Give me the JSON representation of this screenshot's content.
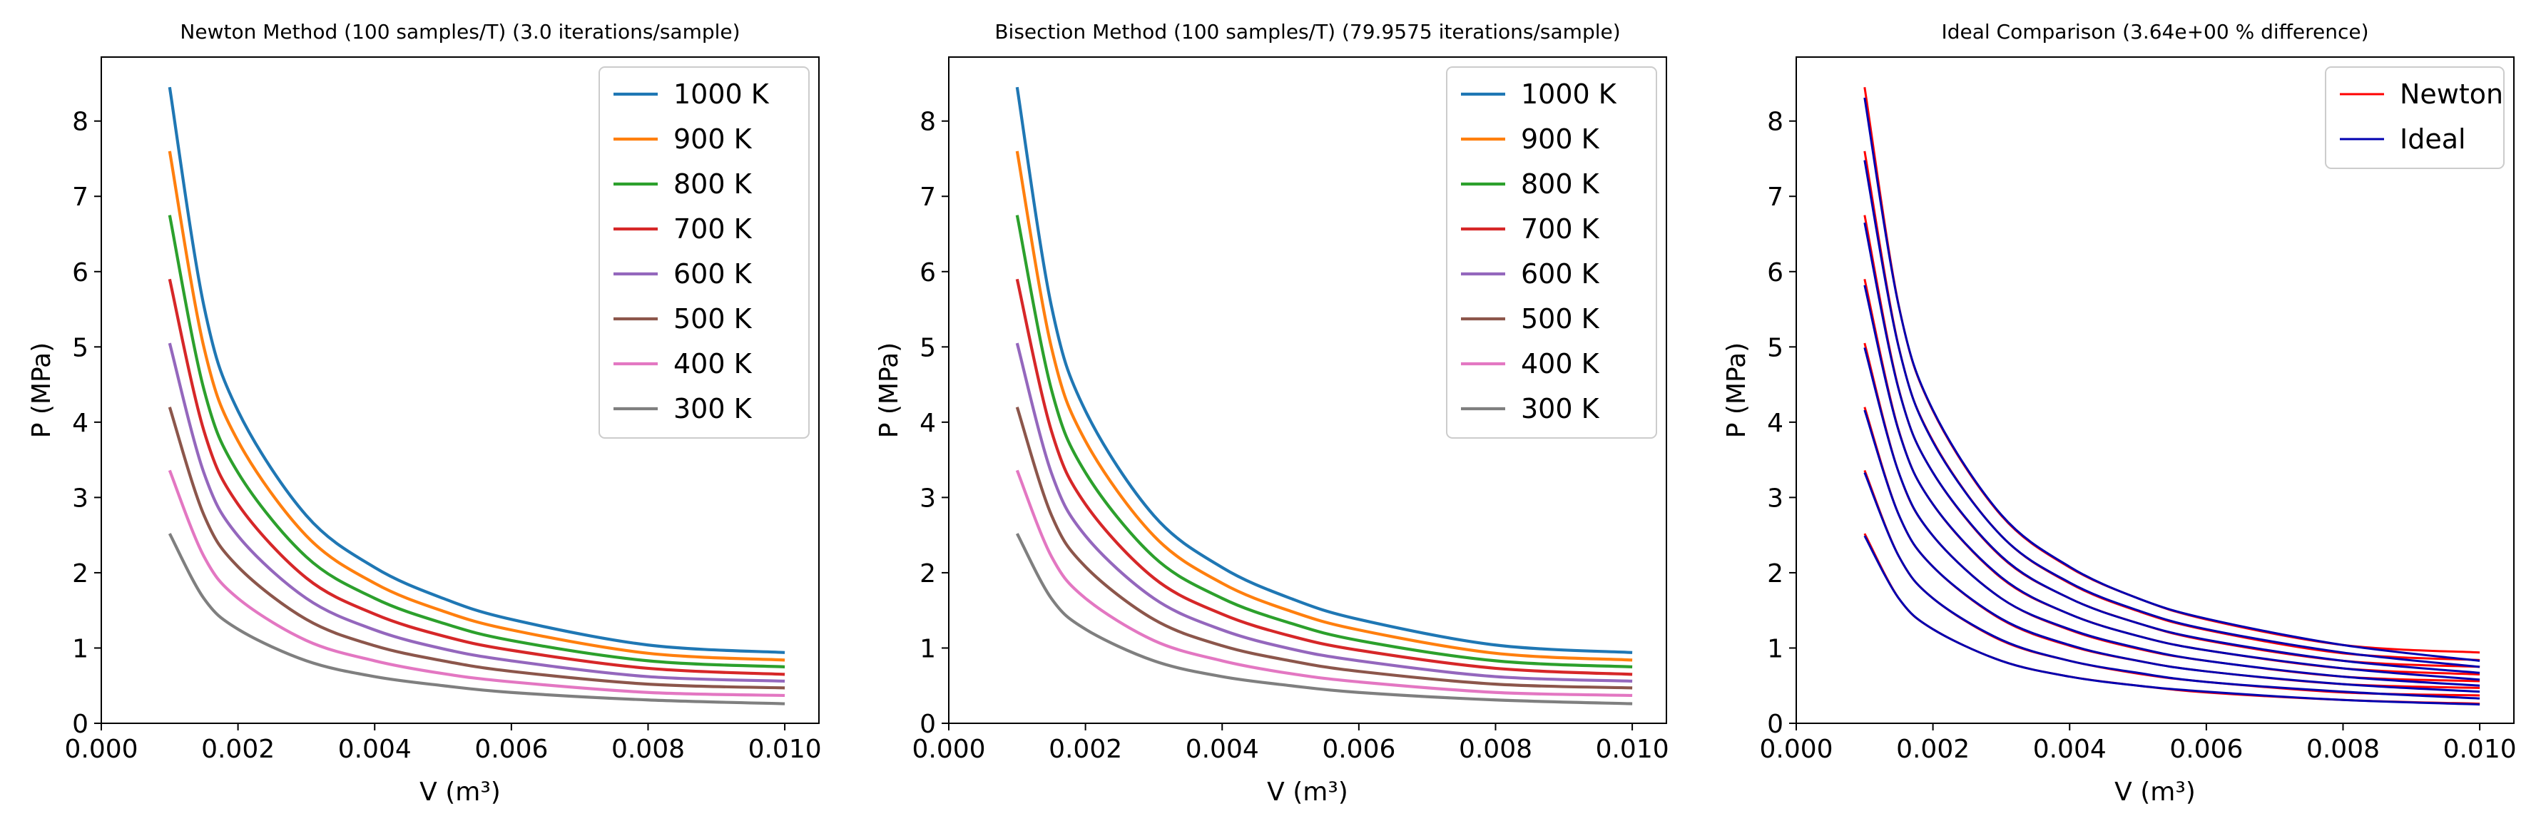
{
  "chart_data": [
    {
      "type": "line",
      "title": "Newton Method (100 samples/T) (3.0 iterations/sample)",
      "xlabel": "V (m³)",
      "ylabel": "P (MPa)",
      "xlim": [
        0,
        0.0105
      ],
      "ylim": [
        0,
        8.85
      ],
      "xticks": [
        "0.000",
        "0.002",
        "0.004",
        "0.006",
        "0.008",
        "0.010"
      ],
      "yticks": [
        "0",
        "1",
        "2",
        "3",
        "4",
        "5",
        "6",
        "7",
        "8"
      ],
      "legend_position": "upper-right",
      "x": [
        0.001,
        0.0015,
        0.002,
        0.003,
        0.004,
        0.005,
        0.006,
        0.008,
        0.01
      ],
      "series": [
        {
          "name": "1000 K",
          "color": "#1f77b4",
          "values": [
            8.45,
            5.55,
            4.15,
            2.76,
            2.07,
            1.66,
            1.38,
            1.04,
            0.94
          ]
        },
        {
          "name": "900 K",
          "color": "#ff7f0e",
          "values": [
            7.6,
            5.0,
            3.75,
            2.49,
            1.86,
            1.49,
            1.24,
            0.93,
            0.84
          ]
        },
        {
          "name": "800 K",
          "color": "#2ca02c",
          "values": [
            6.75,
            4.44,
            3.33,
            2.21,
            1.66,
            1.33,
            1.1,
            0.83,
            0.75
          ]
        },
        {
          "name": "700 K",
          "color": "#d62728",
          "values": [
            5.9,
            3.89,
            2.91,
            1.93,
            1.45,
            1.16,
            0.97,
            0.73,
            0.65
          ]
        },
        {
          "name": "600 K",
          "color": "#9467bd",
          "values": [
            5.05,
            3.33,
            2.49,
            1.66,
            1.24,
            0.99,
            0.83,
            0.62,
            0.56
          ]
        },
        {
          "name": "500 K",
          "color": "#8c564b",
          "values": [
            4.2,
            2.77,
            2.08,
            1.38,
            1.03,
            0.83,
            0.69,
            0.52,
            0.47
          ]
        },
        {
          "name": "400 K",
          "color": "#e377c2",
          "values": [
            3.36,
            2.22,
            1.66,
            1.1,
            0.83,
            0.66,
            0.55,
            0.41,
            0.37
          ]
        },
        {
          "name": "300 K",
          "color": "#7f7f7f",
          "values": [
            2.52,
            1.66,
            1.25,
            0.83,
            0.62,
            0.5,
            0.41,
            0.31,
            0.26
          ]
        }
      ]
    },
    {
      "type": "line",
      "title": "Bisection Method (100 samples/T) (79.9575 iterations/sample)",
      "xlabel": "V (m³)",
      "ylabel": "P (MPa)",
      "xlim": [
        0,
        0.0105
      ],
      "ylim": [
        0,
        8.85
      ],
      "xticks": [
        "0.000",
        "0.002",
        "0.004",
        "0.006",
        "0.008",
        "0.010"
      ],
      "yticks": [
        "0",
        "1",
        "2",
        "3",
        "4",
        "5",
        "6",
        "7",
        "8"
      ],
      "legend_position": "upper-right",
      "x": [
        0.001,
        0.0015,
        0.002,
        0.003,
        0.004,
        0.005,
        0.006,
        0.008,
        0.01
      ],
      "series": [
        {
          "name": "1000 K",
          "color": "#1f77b4",
          "values": [
            8.45,
            5.55,
            4.15,
            2.76,
            2.07,
            1.66,
            1.38,
            1.04,
            0.94
          ]
        },
        {
          "name": "900 K",
          "color": "#ff7f0e",
          "values": [
            7.6,
            5.0,
            3.75,
            2.49,
            1.86,
            1.49,
            1.24,
            0.93,
            0.84
          ]
        },
        {
          "name": "800 K",
          "color": "#2ca02c",
          "values": [
            6.75,
            4.44,
            3.33,
            2.21,
            1.66,
            1.33,
            1.1,
            0.83,
            0.75
          ]
        },
        {
          "name": "700 K",
          "color": "#d62728",
          "values": [
            5.9,
            3.89,
            2.91,
            1.93,
            1.45,
            1.16,
            0.97,
            0.73,
            0.65
          ]
        },
        {
          "name": "600 K",
          "color": "#9467bd",
          "values": [
            5.05,
            3.33,
            2.49,
            1.66,
            1.24,
            0.99,
            0.83,
            0.62,
            0.56
          ]
        },
        {
          "name": "500 K",
          "color": "#8c564b",
          "values": [
            4.2,
            2.77,
            2.08,
            1.38,
            1.03,
            0.83,
            0.69,
            0.52,
            0.47
          ]
        },
        {
          "name": "400 K",
          "color": "#e377c2",
          "values": [
            3.36,
            2.22,
            1.66,
            1.1,
            0.83,
            0.66,
            0.55,
            0.41,
            0.37
          ]
        },
        {
          "name": "300 K",
          "color": "#7f7f7f",
          "values": [
            2.52,
            1.66,
            1.25,
            0.83,
            0.62,
            0.5,
            0.41,
            0.31,
            0.26
          ]
        }
      ]
    },
    {
      "type": "line",
      "title": "Ideal Comparison (3.64e+00 % difference)",
      "xlabel": "V (m³)",
      "ylabel": "P (MPa)",
      "xlim": [
        0,
        0.0105
      ],
      "ylim": [
        0,
        8.85
      ],
      "xticks": [
        "0.000",
        "0.002",
        "0.004",
        "0.006",
        "0.008",
        "0.010"
      ],
      "yticks": [
        "0",
        "1",
        "2",
        "3",
        "4",
        "5",
        "6",
        "7",
        "8"
      ],
      "legend_position": "upper-right",
      "legend": [
        {
          "name": "Newton",
          "color": "#ff0000"
        },
        {
          "name": "Ideal",
          "color": "#0000b0"
        }
      ],
      "x": [
        0.001,
        0.0015,
        0.002,
        0.003,
        0.004,
        0.005,
        0.006,
        0.008,
        0.01
      ],
      "series": [
        {
          "color": "#ff0000",
          "values": [
            8.45,
            5.55,
            4.15,
            2.76,
            2.07,
            1.66,
            1.38,
            1.04,
            0.94
          ]
        },
        {
          "color": "#ff0000",
          "values": [
            7.6,
            5.0,
            3.75,
            2.49,
            1.86,
            1.49,
            1.24,
            0.93,
            0.84
          ]
        },
        {
          "color": "#ff0000",
          "values": [
            6.75,
            4.44,
            3.33,
            2.21,
            1.66,
            1.33,
            1.1,
            0.83,
            0.75
          ]
        },
        {
          "color": "#ff0000",
          "values": [
            5.9,
            3.89,
            2.91,
            1.93,
            1.45,
            1.16,
            0.97,
            0.73,
            0.65
          ]
        },
        {
          "color": "#ff0000",
          "values": [
            5.05,
            3.33,
            2.49,
            1.66,
            1.24,
            0.99,
            0.83,
            0.62,
            0.56
          ]
        },
        {
          "color": "#ff0000",
          "values": [
            4.2,
            2.77,
            2.08,
            1.38,
            1.03,
            0.83,
            0.69,
            0.52,
            0.47
          ]
        },
        {
          "color": "#ff0000",
          "values": [
            3.36,
            2.22,
            1.66,
            1.1,
            0.83,
            0.66,
            0.55,
            0.41,
            0.37
          ]
        },
        {
          "color": "#ff0000",
          "values": [
            2.52,
            1.66,
            1.25,
            0.83,
            0.62,
            0.5,
            0.41,
            0.31,
            0.26
          ]
        },
        {
          "color": "#0000b0",
          "values": [
            8.31,
            5.54,
            4.16,
            2.77,
            2.08,
            1.66,
            1.39,
            1.04,
            0.83
          ]
        },
        {
          "color": "#0000b0",
          "values": [
            7.48,
            4.99,
            3.74,
            2.49,
            1.87,
            1.5,
            1.25,
            0.94,
            0.75
          ]
        },
        {
          "color": "#0000b0",
          "values": [
            6.65,
            4.43,
            3.33,
            2.22,
            1.66,
            1.33,
            1.11,
            0.83,
            0.67
          ]
        },
        {
          "color": "#0000b0",
          "values": [
            5.82,
            3.88,
            2.91,
            1.94,
            1.45,
            1.16,
            0.97,
            0.73,
            0.58
          ]
        },
        {
          "color": "#0000b0",
          "values": [
            4.99,
            3.33,
            2.49,
            1.66,
            1.25,
            1.0,
            0.83,
            0.62,
            0.5
          ]
        },
        {
          "color": "#0000b0",
          "values": [
            4.16,
            2.77,
            2.08,
            1.39,
            1.04,
            0.83,
            0.69,
            0.52,
            0.42
          ]
        },
        {
          "color": "#0000b0",
          "values": [
            3.33,
            2.22,
            1.66,
            1.11,
            0.83,
            0.67,
            0.55,
            0.42,
            0.33
          ]
        },
        {
          "color": "#0000b0",
          "values": [
            2.49,
            1.66,
            1.25,
            0.83,
            0.62,
            0.5,
            0.42,
            0.31,
            0.25
          ]
        }
      ]
    }
  ]
}
